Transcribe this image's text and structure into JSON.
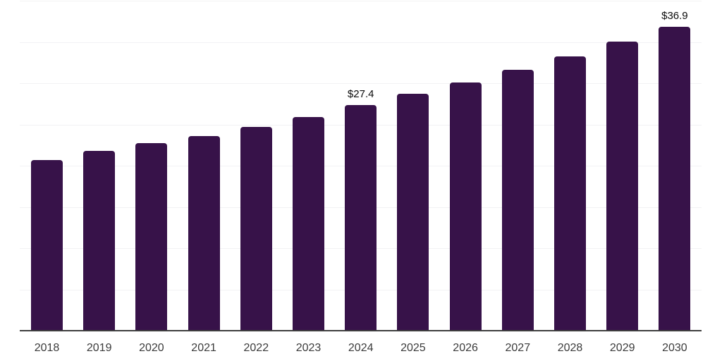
{
  "chart_data": {
    "type": "bar",
    "title": "",
    "xlabel": "",
    "ylabel": "",
    "categories": [
      "2018",
      "2019",
      "2020",
      "2021",
      "2022",
      "2023",
      "2024",
      "2025",
      "2026",
      "2027",
      "2028",
      "2029",
      "2030"
    ],
    "values": [
      20.8,
      21.9,
      22.8,
      23.7,
      24.8,
      26.0,
      27.4,
      28.8,
      30.2,
      31.7,
      33.3,
      35.1,
      36.9
    ],
    "data_labels": [
      "",
      "",
      "",
      "",
      "",
      "",
      "$27.4",
      "",
      "",
      "",
      "",
      "",
      "$36.9"
    ],
    "ylim": [
      0,
      40
    ],
    "gridline_step": 5,
    "grid": "horizontal-only",
    "y_tick_labels_visible": false,
    "legend_position": "none"
  },
  "style": {
    "bar_color": "#371249",
    "gridline_color": "#f2f2f4",
    "axis_line_color": "#3e3e3e",
    "tick_label_color": "#3b3b3b",
    "data_label_color": "#0b0b0b",
    "background_color": "#ffffff"
  }
}
